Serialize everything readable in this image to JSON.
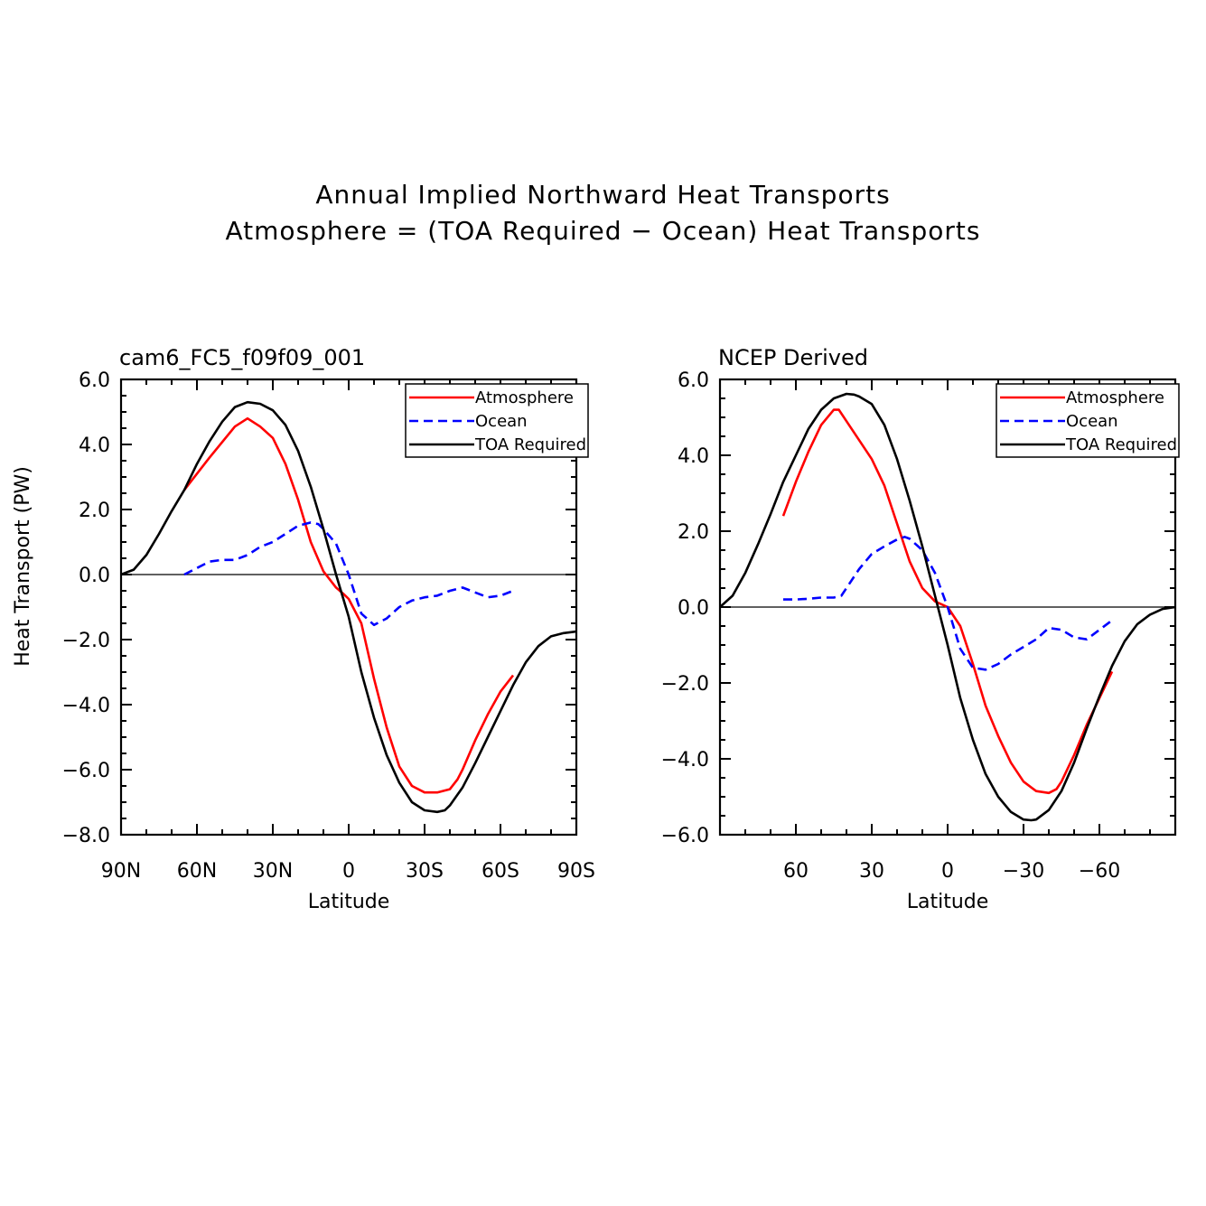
{
  "title_line1": "Annual Implied Northward Heat Transports",
  "title_line2": "Atmosphere = (TOA Required − Ocean) Heat Transports",
  "chart_data": [
    {
      "type": "line",
      "subtitle": "cam6_FC5_f09f09_001",
      "xlabel": "Latitude",
      "ylabel": "Heat Transport (PW)",
      "xlim": [
        90,
        -90
      ],
      "ylim": [
        -8,
        6
      ],
      "xticks": [
        90,
        60,
        30,
        0,
        -30,
        -60,
        -90
      ],
      "xtick_labels": [
        "90N",
        "60N",
        "30N",
        "0",
        "30S",
        "60S",
        "90S"
      ],
      "yticks": [
        6,
        4,
        2,
        0,
        -2,
        -4,
        -6,
        -8
      ],
      "ytick_labels": [
        "6.0",
        "4.0",
        "2.0",
        "0.0",
        "−2.0",
        "−4.0",
        "−6.0",
        "−8.0"
      ],
      "grid": false,
      "zero_line": true,
      "legend_position": "top-right",
      "series": [
        {
          "name": "Atmosphere",
          "color": "#ff0000",
          "dash": "solid",
          "x": [
            65,
            55,
            45,
            40,
            35,
            30,
            25,
            20,
            15,
            10,
            5,
            2,
            0,
            -5,
            -10,
            -15,
            -20,
            -25,
            -30,
            -35,
            -40,
            -43,
            -45,
            -50,
            -55,
            -60,
            -65
          ],
          "y": [
            2.6,
            3.6,
            4.55,
            4.8,
            4.55,
            4.2,
            3.4,
            2.3,
            1.0,
            0.1,
            -0.4,
            -0.6,
            -0.75,
            -1.5,
            -3.2,
            -4.7,
            -5.9,
            -6.5,
            -6.7,
            -6.7,
            -6.6,
            -6.3,
            -6.0,
            -5.1,
            -4.3,
            -3.6,
            -3.1
          ]
        },
        {
          "name": "Ocean",
          "color": "#0000ff",
          "dash": "dashed",
          "x": [
            65,
            60,
            55,
            50,
            45,
            40,
            35,
            30,
            25,
            20,
            15,
            12,
            10,
            5,
            0,
            -5,
            -10,
            -15,
            -20,
            -25,
            -30,
            -35,
            -40,
            -45,
            -50,
            -55,
            -60,
            -65
          ],
          "y": [
            0.0,
            0.2,
            0.4,
            0.45,
            0.45,
            0.6,
            0.85,
            1.0,
            1.25,
            1.5,
            1.6,
            1.55,
            1.4,
            0.95,
            0.0,
            -1.2,
            -1.55,
            -1.35,
            -1.0,
            -0.8,
            -0.7,
            -0.65,
            -0.5,
            -0.4,
            -0.55,
            -0.7,
            -0.65,
            -0.5
          ]
        },
        {
          "name": "TOA Required",
          "color": "#000000",
          "dash": "solid",
          "x": [
            90,
            85,
            80,
            75,
            70,
            65,
            60,
            55,
            50,
            45,
            40,
            35,
            30,
            25,
            20,
            15,
            10,
            5,
            0,
            -5,
            -10,
            -15,
            -20,
            -25,
            -30,
            -35,
            -38,
            -40,
            -45,
            -50,
            -55,
            -60,
            -65,
            -70,
            -75,
            -80,
            -85,
            -90
          ],
          "y": [
            0.0,
            0.15,
            0.6,
            1.25,
            1.95,
            2.6,
            3.4,
            4.1,
            4.7,
            5.15,
            5.3,
            5.25,
            5.05,
            4.6,
            3.8,
            2.7,
            1.4,
            0.0,
            -1.3,
            -3.0,
            -4.4,
            -5.55,
            -6.4,
            -7.0,
            -7.25,
            -7.3,
            -7.25,
            -7.1,
            -6.55,
            -5.8,
            -5.0,
            -4.2,
            -3.4,
            -2.7,
            -2.2,
            -1.9,
            -1.8,
            -1.75
          ]
        }
      ]
    },
    {
      "type": "line",
      "subtitle": "NCEP Derived",
      "xlabel": "Latitude",
      "ylabel": "",
      "xlim": [
        90,
        -90
      ],
      "ylim": [
        -6,
        6
      ],
      "xticks": [
        60,
        30,
        0,
        -30,
        -60
      ],
      "xtick_labels": [
        "60",
        "30",
        "0",
        "−30",
        "−60"
      ],
      "yticks": [
        6,
        4,
        2,
        0,
        -2,
        -4,
        -6
      ],
      "ytick_labels": [
        "6.0",
        "4.0",
        "2.0",
        "0.0",
        "−2.0",
        "−4.0",
        "−6.0"
      ],
      "grid": false,
      "zero_line": true,
      "legend_position": "top-right",
      "series": [
        {
          "name": "Atmosphere",
          "color": "#ff0000",
          "dash": "solid",
          "x": [
            65,
            60,
            55,
            50,
            45,
            43,
            40,
            35,
            30,
            25,
            20,
            15,
            10,
            5,
            0,
            -5,
            -10,
            -15,
            -20,
            -25,
            -30,
            -35,
            -40,
            -43,
            -45,
            -50,
            -55,
            -60,
            -65
          ],
          "y": [
            2.4,
            3.3,
            4.1,
            4.8,
            5.2,
            5.2,
            4.9,
            4.4,
            3.9,
            3.2,
            2.2,
            1.2,
            0.5,
            0.15,
            0.0,
            -0.5,
            -1.5,
            -2.6,
            -3.4,
            -4.1,
            -4.6,
            -4.85,
            -4.9,
            -4.8,
            -4.6,
            -3.9,
            -3.1,
            -2.4,
            -1.7
          ]
        },
        {
          "name": "Ocean",
          "color": "#0000ff",
          "dash": "dashed",
          "x": [
            65,
            60,
            55,
            50,
            45,
            42,
            40,
            35,
            30,
            25,
            20,
            17,
            15,
            10,
            5,
            0,
            -5,
            -10,
            -15,
            -20,
            -25,
            -30,
            -35,
            -40,
            -45,
            -50,
            -55,
            -60,
            -65
          ],
          "y": [
            0.2,
            0.2,
            0.22,
            0.25,
            0.25,
            0.3,
            0.5,
            1.0,
            1.4,
            1.6,
            1.78,
            1.85,
            1.8,
            1.5,
            0.9,
            0.0,
            -1.1,
            -1.6,
            -1.65,
            -1.5,
            -1.25,
            -1.05,
            -0.85,
            -0.55,
            -0.6,
            -0.8,
            -0.85,
            -0.6,
            -0.35
          ]
        },
        {
          "name": "TOA Required",
          "color": "#000000",
          "dash": "solid",
          "x": [
            90,
            85,
            80,
            75,
            70,
            65,
            60,
            55,
            50,
            45,
            40,
            37,
            35,
            30,
            25,
            20,
            15,
            10,
            5,
            0,
            -5,
            -10,
            -15,
            -20,
            -25,
            -30,
            -33,
            -35,
            -40,
            -45,
            -50,
            -55,
            -60,
            -65,
            -70,
            -75,
            -80,
            -85,
            -90
          ],
          "y": [
            0.0,
            0.3,
            0.9,
            1.65,
            2.45,
            3.3,
            4.0,
            4.7,
            5.2,
            5.5,
            5.62,
            5.6,
            5.55,
            5.35,
            4.8,
            3.9,
            2.8,
            1.6,
            0.3,
            -1.0,
            -2.4,
            -3.5,
            -4.4,
            -5.0,
            -5.4,
            -5.6,
            -5.62,
            -5.6,
            -5.35,
            -4.85,
            -4.1,
            -3.2,
            -2.35,
            -1.55,
            -0.9,
            -0.45,
            -0.2,
            -0.05,
            0.0
          ]
        }
      ]
    }
  ]
}
